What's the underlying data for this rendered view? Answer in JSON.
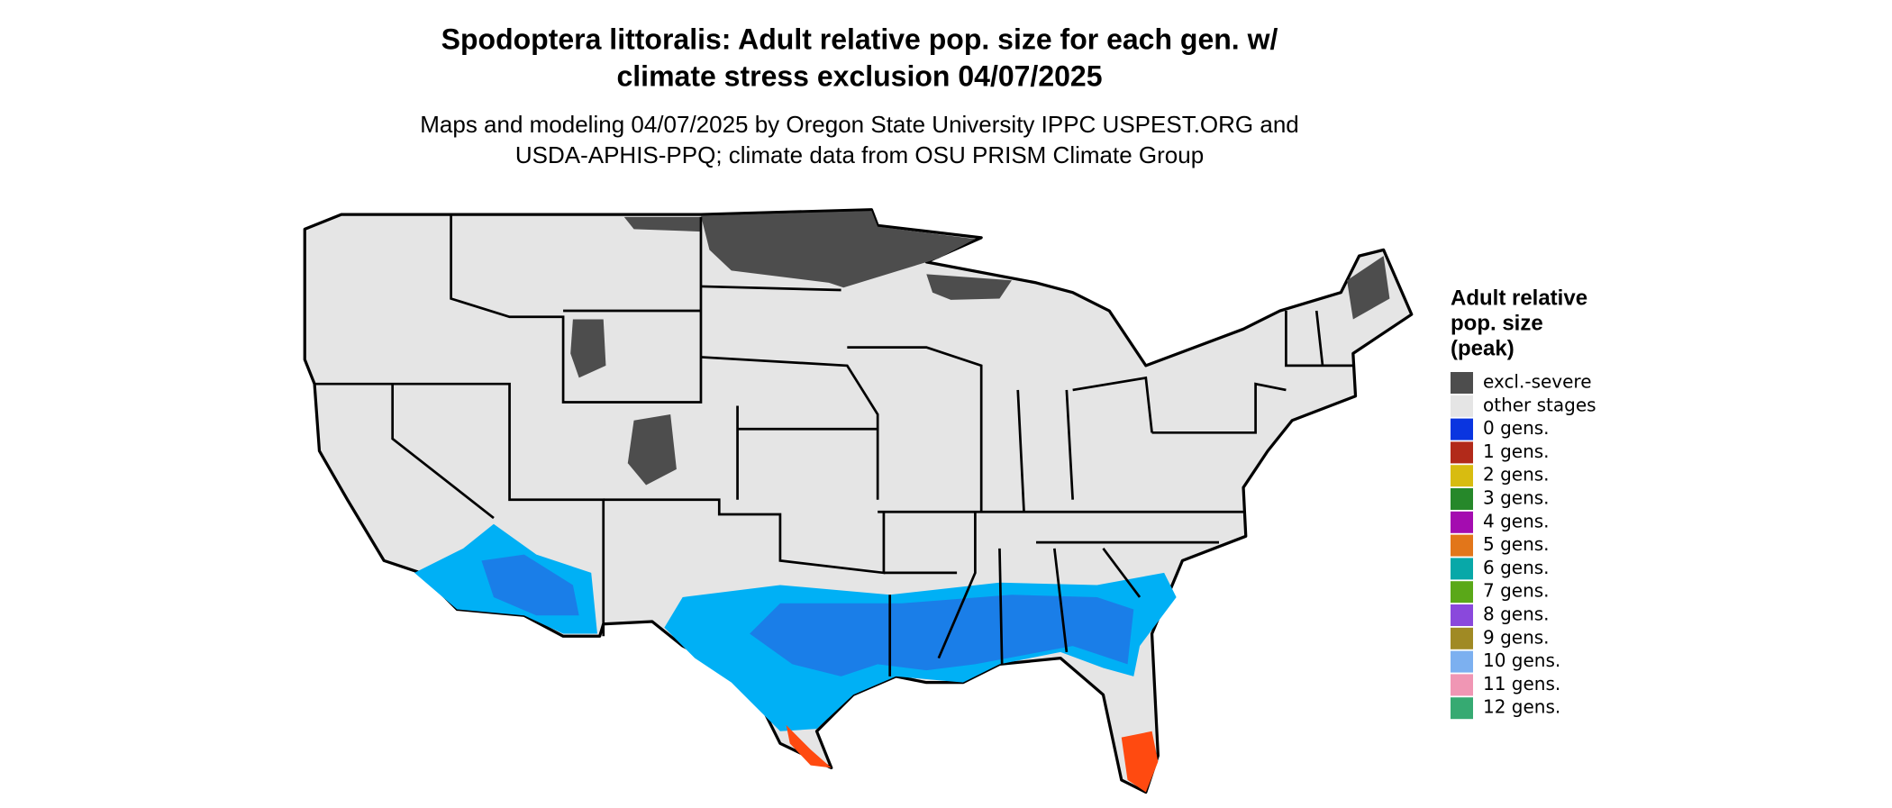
{
  "header": {
    "title_lines": [
      "Spodoptera littoralis: Adult relative pop. size for each gen. w/",
      "climate stress exclusion 04/07/2025"
    ],
    "subtitle_lines": [
      "Maps and modeling 04/07/2025 by Oregon State University IPPC USPEST.ORG and",
      "USDA-APHIS-PPQ; climate data from OSU PRISM Climate Group"
    ]
  },
  "legend": {
    "title_lines": [
      "Adult relative",
      "pop. size",
      "(peak)"
    ],
    "items": [
      {
        "label": "excl.-severe",
        "color": "#4d4d4d"
      },
      {
        "label": "other stages",
        "color": "#e5e5e5"
      },
      {
        "label": "0 gens.",
        "color": "#0a35e0"
      },
      {
        "label": "1 gens.",
        "color": "#b22a1a"
      },
      {
        "label": "2 gens.",
        "color": "#d8bc10"
      },
      {
        "label": "3 gens.",
        "color": "#26882a"
      },
      {
        "label": "4 gens.",
        "color": "#a40cb0"
      },
      {
        "label": "5 gens.",
        "color": "#e2761a"
      },
      {
        "label": "6 gens.",
        "color": "#08a8a8"
      },
      {
        "label": "7 gens.",
        "color": "#5aa818"
      },
      {
        "label": "8 gens.",
        "color": "#8a48dc"
      },
      {
        "label": "9 gens.",
        "color": "#a08a24"
      },
      {
        "label": "10 gens.",
        "color": "#7cb0f0"
      },
      {
        "label": "11 gens.",
        "color": "#f096b4"
      },
      {
        "label": "12 gens.",
        "color": "#36aa72"
      }
    ]
  }
}
